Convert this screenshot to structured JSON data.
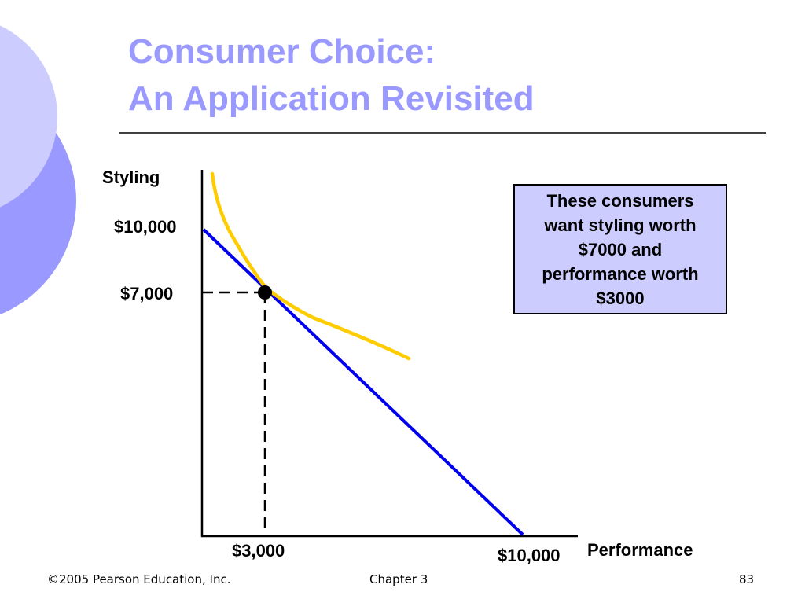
{
  "slide": {
    "title_line_1": "Consumer Choice:",
    "title_line_2": "An Application Revisited",
    "title_color": "#9999ff",
    "accent_colors": {
      "light_circle": "#ccccff",
      "dark_circle": "#9999ff",
      "budget_line": "#0000ee",
      "indifference_curve": "#ffcc00",
      "callout_fill": "#ccccff"
    }
  },
  "diagram": {
    "y_axis_label": "Styling",
    "x_axis_label": "Performance",
    "y_tick_10000": "$10,000",
    "y_tick_7000": "$7,000",
    "x_tick_3000": "$3,000",
    "x_tick_10000": "$10,000",
    "callout": "These consumers\nwant styling worth\n$7000 and\nperformance worth\n$3000"
  },
  "footer": {
    "copyright": "©2005 Pearson Education, Inc.",
    "chapter": "Chapter 3",
    "page_number": "83"
  }
}
